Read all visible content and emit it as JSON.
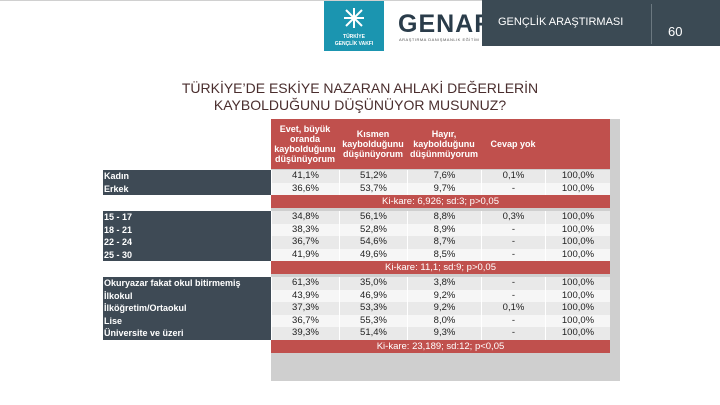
{
  "header": {
    "logo_caption_1": "GENÇLİK VAKFI",
    "logo_caption_0": "TÜRKİYE",
    "brand": "GENAR",
    "brand_sub": "ARAŞTIRMA DANIŞMANLIK EĞİTİM",
    "title": "GENÇLİK ARAŞTIRMASI",
    "page_number": "60"
  },
  "slide": {
    "title_line_1": "TÜRKİYE’DE ESKİYE NAZARAN AHLAKİ DEĞERLERİN",
    "title_line_2": "KAYBOLDUĞUNU DÜŞÜNÜYOR MUSUNUZ?"
  },
  "table": {
    "columns": [
      "Evet, büyük oranda kaybolduğunu düşünüyorum",
      "Kısmen kaybolduğunu düşünüyorum",
      "Hayır, kaybolduğunu düşünmüyorum",
      "Cevap yok",
      ""
    ],
    "groups": [
      {
        "rows": [
          {
            "label": "Kadın",
            "values": [
              "41,1%",
              "51,2%",
              "7,6%",
              "0,1%",
              "100,0%"
            ]
          },
          {
            "label": "Erkek",
            "values": [
              "36,6%",
              "53,7%",
              "9,7%",
              "-",
              "100,0%"
            ]
          }
        ],
        "chi": "Ki-kare: 6,926; sd:3; p>0,05"
      },
      {
        "rows": [
          {
            "label": "15 - 17",
            "values": [
              "34,8%",
              "56,1%",
              "8,8%",
              "0,3%",
              "100,0%"
            ]
          },
          {
            "label": "18 - 21",
            "values": [
              "38,3%",
              "52,8%",
              "8,9%",
              "-",
              "100,0%"
            ]
          },
          {
            "label": "22 - 24",
            "values": [
              "36,7%",
              "54,6%",
              "8,7%",
              "-",
              "100,0%"
            ]
          },
          {
            "label": "25 - 30",
            "values": [
              "41,9%",
              "49,6%",
              "8,5%",
              "-",
              "100,0%"
            ]
          }
        ],
        "chi": "Ki-kare: 11,1; sd:9; p>0,05"
      },
      {
        "rows": [
          {
            "label": "Okuryazar fakat okul bitirmemiş",
            "values": [
              "61,3%",
              "35,0%",
              "3,8%",
              "-",
              "100,0%"
            ]
          },
          {
            "label": "İlkokul",
            "values": [
              "43,9%",
              "46,9%",
              "9,2%",
              "-",
              "100,0%"
            ]
          },
          {
            "label": "İlköğretim/Ortaokul",
            "values": [
              "37,3%",
              "53,3%",
              "9,2%",
              "0,1%",
              "100,0%"
            ]
          },
          {
            "label": "Lise",
            "values": [
              "36,7%",
              "55,3%",
              "8,0%",
              "-",
              "100,0%"
            ]
          },
          {
            "label": "Üniversite ve üzeri",
            "values": [
              "39,3%",
              "51,4%",
              "9,3%",
              "-",
              "100,0%"
            ]
          }
        ],
        "chi": "Ki-kare: 23,189; sd:12; p<0,05"
      }
    ]
  }
}
